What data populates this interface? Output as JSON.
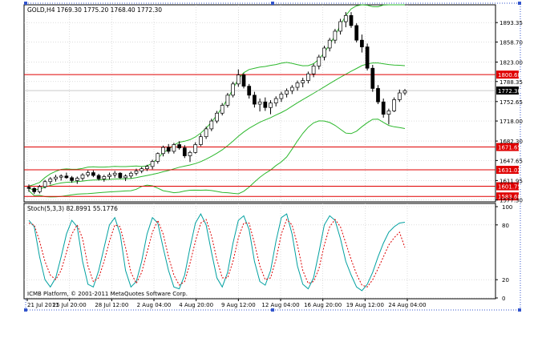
{
  "chart_data": [
    {
      "type": "candlestick",
      "title": "GOLD,H4  1769.30 1775.20 1768.40 1772.30",
      "symbol": "GOLD,H4",
      "last_bar": {
        "open": "1769.30",
        "high": "1775.20",
        "low": "1768.40",
        "close": "1772.30"
      },
      "ylim": [
        1574,
        1925
      ],
      "y_ticks": [
        "1893.35",
        "1858.70",
        "1823.00",
        "1788.35",
        "1752.65",
        "1718.00",
        "1682.30",
        "1647.65",
        "1611.95",
        "1577.30"
      ],
      "current_price_label": "1772.30",
      "horizontal_levels": [
        {
          "value": 1800.68,
          "label": "1800.68"
        },
        {
          "value": 1671.65,
          "label": "1671.65"
        },
        {
          "value": 1631.02,
          "label": "1631.02"
        },
        {
          "value": 1601.75,
          "label": "1601.75"
        },
        {
          "value": 1583.68,
          "label": "1583.68"
        }
      ],
      "indicator": "Bollinger Bands",
      "ohlc": [
        [
          1600,
          1605,
          1592,
          1598
        ],
        [
          1598,
          1600,
          1588,
          1592
        ],
        [
          1592,
          1604,
          1589,
          1601
        ],
        [
          1601,
          1613,
          1598,
          1610
        ],
        [
          1610,
          1618,
          1605,
          1615
        ],
        [
          1615,
          1622,
          1610,
          1618
        ],
        [
          1618,
          1623,
          1612,
          1620
        ],
        [
          1620,
          1626,
          1615,
          1617
        ],
        [
          1617,
          1620,
          1608,
          1612
        ],
        [
          1612,
          1619,
          1606,
          1616
        ],
        [
          1616,
          1625,
          1612,
          1622
        ],
        [
          1622,
          1630,
          1618,
          1626
        ],
        [
          1626,
          1630,
          1618,
          1621
        ],
        [
          1621,
          1624,
          1612,
          1615
        ],
        [
          1615,
          1622,
          1610,
          1619
        ],
        [
          1619,
          1626,
          1614,
          1622
        ],
        [
          1622,
          1629,
          1617,
          1625
        ],
        [
          1625,
          1627,
          1615,
          1617
        ],
        [
          1617,
          1623,
          1611,
          1620
        ],
        [
          1620,
          1628,
          1616,
          1625
        ],
        [
          1625,
          1633,
          1621,
          1629
        ],
        [
          1629,
          1636,
          1625,
          1633
        ],
        [
          1633,
          1640,
          1629,
          1637
        ],
        [
          1637,
          1649,
          1632,
          1646
        ],
        [
          1646,
          1662,
          1642,
          1660
        ],
        [
          1660,
          1674,
          1655,
          1671
        ],
        [
          1671,
          1677,
          1660,
          1664
        ],
        [
          1664,
          1679,
          1660,
          1676
        ],
        [
          1676,
          1682,
          1667,
          1670
        ],
        [
          1670,
          1675,
          1652,
          1656
        ],
        [
          1656,
          1665,
          1645,
          1662
        ],
        [
          1662,
          1680,
          1660,
          1676
        ],
        [
          1676,
          1695,
          1673,
          1690
        ],
        [
          1690,
          1708,
          1686,
          1704
        ],
        [
          1704,
          1722,
          1700,
          1718
        ],
        [
          1718,
          1736,
          1714,
          1732
        ],
        [
          1732,
          1750,
          1728,
          1746
        ],
        [
          1746,
          1768,
          1742,
          1764
        ],
        [
          1764,
          1788,
          1760,
          1784
        ],
        [
          1784,
          1810,
          1779,
          1800
        ],
        [
          1800,
          1803,
          1776,
          1780
        ],
        [
          1780,
          1784,
          1758,
          1764
        ],
        [
          1764,
          1770,
          1742,
          1748
        ],
        [
          1748,
          1758,
          1735,
          1752
        ],
        [
          1752,
          1760,
          1736,
          1742
        ],
        [
          1742,
          1755,
          1730,
          1750
        ],
        [
          1750,
          1762,
          1744,
          1758
        ],
        [
          1758,
          1770,
          1752,
          1766
        ],
        [
          1766,
          1776,
          1760,
          1772
        ],
        [
          1772,
          1782,
          1766,
          1778
        ],
        [
          1778,
          1790,
          1772,
          1786
        ],
        [
          1786,
          1795,
          1778,
          1790
        ],
        [
          1790,
          1806,
          1785,
          1802
        ],
        [
          1802,
          1820,
          1796,
          1816
        ],
        [
          1816,
          1836,
          1810,
          1832
        ],
        [
          1832,
          1852,
          1826,
          1848
        ],
        [
          1848,
          1866,
          1842,
          1862
        ],
        [
          1862,
          1882,
          1856,
          1878
        ],
        [
          1878,
          1900,
          1872,
          1895
        ],
        [
          1895,
          1912,
          1885,
          1906
        ],
        [
          1906,
          1912,
          1884,
          1888
        ],
        [
          1888,
          1892,
          1858,
          1862
        ],
        [
          1862,
          1872,
          1840,
          1850
        ],
        [
          1850,
          1856,
          1808,
          1812
        ],
        [
          1812,
          1818,
          1770,
          1776
        ],
        [
          1776,
          1782,
          1748,
          1752
        ],
        [
          1752,
          1758,
          1724,
          1730
        ],
        [
          1730,
          1740,
          1712,
          1736
        ],
        [
          1736,
          1760,
          1734,
          1756
        ],
        [
          1756,
          1774,
          1752,
          1768
        ],
        [
          1768,
          1775,
          1764,
          1772
        ]
      ]
    },
    {
      "type": "line",
      "title": "Stoch(5,3,3) 82.8991 55.1776",
      "ylim": [
        0,
        100
      ],
      "y_ticks": [
        "100",
        "80",
        "20",
        "0"
      ],
      "overbought": 80,
      "oversold": 20,
      "series": [
        {
          "color": "#00a0a0",
          "values": [
            85,
            78,
            45,
            20,
            12,
            22,
            45,
            70,
            85,
            78,
            40,
            15,
            12,
            30,
            55,
            80,
            88,
            70,
            30,
            12,
            18,
            40,
            70,
            88,
            82,
            55,
            30,
            12,
            10,
            25,
            55,
            82,
            92,
            80,
            50,
            22,
            12,
            28,
            60,
            85,
            90,
            75,
            40,
            18,
            14,
            30,
            62,
            88,
            92,
            70,
            35,
            15,
            10,
            22,
            50,
            80,
            90,
            85,
            65,
            40,
            25,
            12,
            8,
            15,
            28,
            45,
            60,
            72,
            78,
            82,
            82.9
          ]
        },
        {
          "color": "#dd0000",
          "values": [
            82,
            80,
            62,
            40,
            25,
            20,
            30,
            50,
            70,
            80,
            65,
            35,
            18,
            22,
            40,
            62,
            80,
            78,
            55,
            28,
            16,
            28,
            50,
            72,
            85,
            70,
            45,
            25,
            14,
            18,
            38,
            62,
            82,
            86,
            68,
            42,
            22,
            22,
            40,
            66,
            82,
            82,
            60,
            35,
            20,
            22,
            42,
            70,
            86,
            80,
            58,
            30,
            16,
            18,
            32,
            58,
            78,
            86,
            78,
            60,
            42,
            26,
            14,
            12,
            20,
            32,
            45,
            58,
            66,
            72,
            55.2
          ]
        }
      ]
    }
  ],
  "x_labels": [
    "21 Jul 2011",
    "25 Jul 20:00",
    "28 Jul 12:00",
    "2 Aug 04:00",
    "4 Aug 20:00",
    "9 Aug 12:00",
    "12 Aug 04:00",
    "16 Aug 20:00",
    "19 Aug 12:00",
    "24 Aug 04:00"
  ],
  "watermark": "ICMB Platform, © 2001-2011 MetaQuotes Software Corp.",
  "colors": {
    "bull_candle": "#ffffff",
    "bear_candle": "#000000",
    "bands": "#2db82d",
    "level_line": "#e00000",
    "level_label_bg": "#e00000",
    "current_label_bg": "#000000",
    "grid": "#c8c8c8",
    "selection_marker": "#3355cc"
  }
}
